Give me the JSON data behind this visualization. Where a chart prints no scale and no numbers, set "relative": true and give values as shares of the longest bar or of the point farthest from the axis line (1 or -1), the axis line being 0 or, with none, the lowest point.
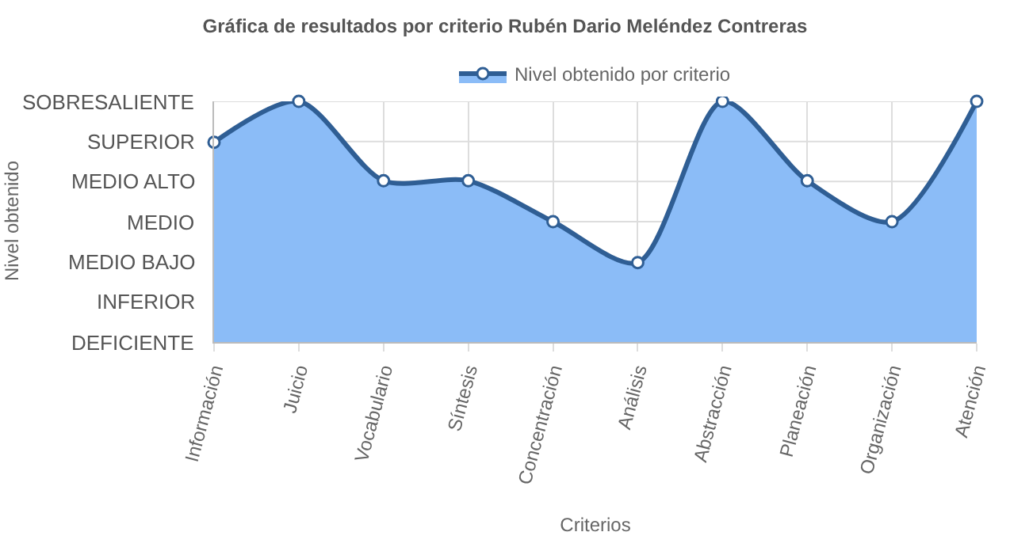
{
  "chart_data": {
    "type": "area",
    "relative": true,
    "title": "Gráfica de resultados por criterio Rubén Dario Meléndez Contreras",
    "xlabel": "Criterios",
    "categories": [
      "Información",
      "Juicio",
      "Vocabulario",
      "Síntesis",
      "Concentración",
      "Análisis",
      "Abstracción",
      "Planeación",
      "Organización",
      "Atención"
    ],
    "annotations": [
      "DEFICIENTE",
      "INFERIOR",
      "MEDIO BAJO",
      "MEDIO",
      "MEDIO ALTO",
      "SUPERIOR",
      "SOBRESALIENTE",
      "Nivel obtenido"
    ],
    "series": [
      {
        "name": "Nivel obtenido por criterio",
        "color": "#8bbcf7",
        "values": [
          0.83,
          1,
          0.67,
          0.67,
          0.5,
          0.33,
          1,
          0.67,
          0.5,
          1
        ]
      }
    ],
    "grid": true,
    "legend": "top",
    "marker": "circle",
    "line_style": "solid"
  }
}
